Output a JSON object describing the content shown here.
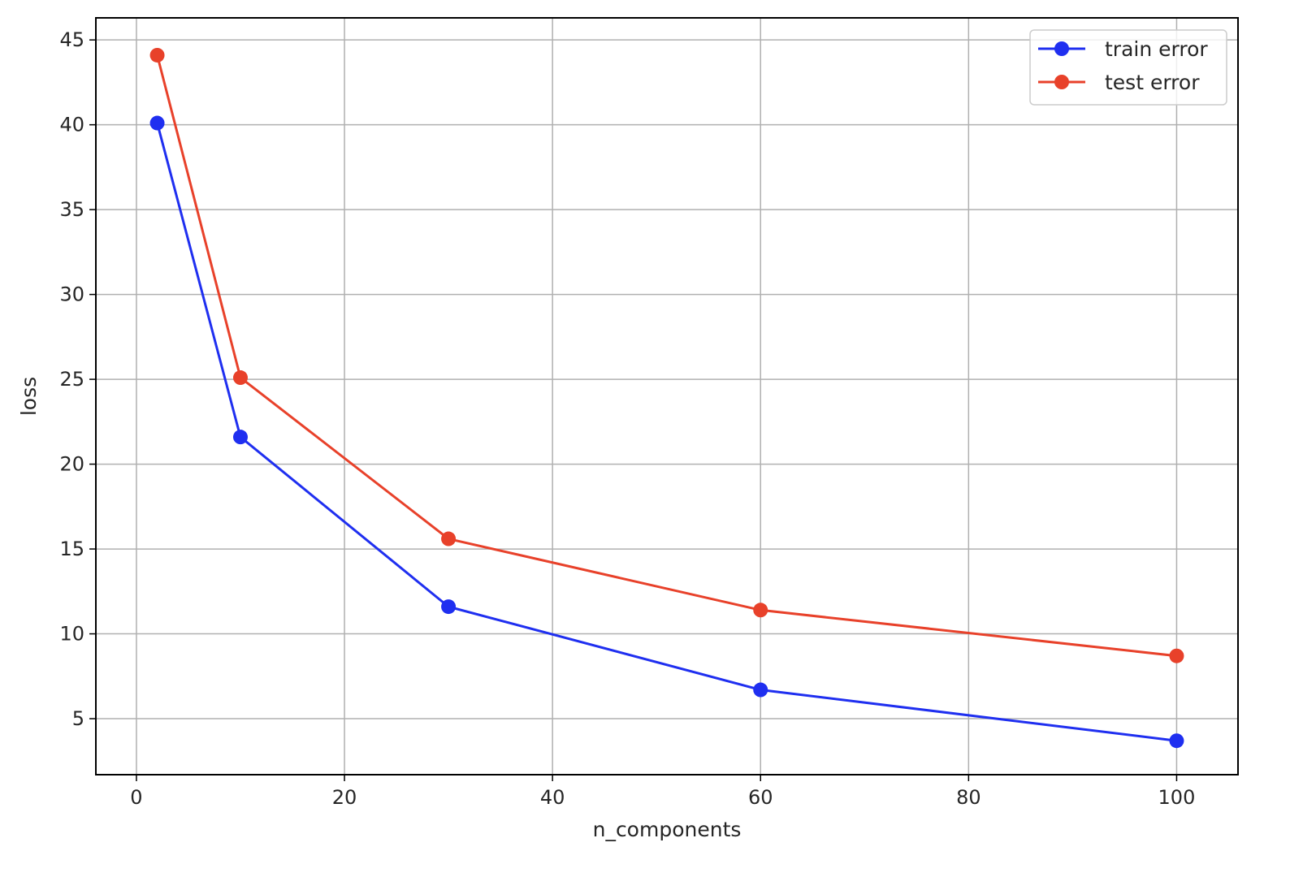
{
  "chart_data": {
    "type": "line",
    "title": "",
    "xlabel": "n_components",
    "ylabel": "loss",
    "xlim": [
      -3.9,
      105.9
    ],
    "ylim": [
      1.7,
      46.3
    ],
    "xticks": [
      0,
      20,
      40,
      60,
      80,
      100
    ],
    "yticks": [
      5,
      10,
      15,
      20,
      25,
      30,
      35,
      40,
      45
    ],
    "grid": true,
    "legend_position": "top-right",
    "series": [
      {
        "name": "train error",
        "color": "#1f2ff0",
        "marker": "circle",
        "x": [
          2,
          10,
          30,
          60,
          100
        ],
        "y": [
          40.1,
          21.6,
          11.6,
          6.7,
          3.7
        ]
      },
      {
        "name": "test error",
        "color": "#e8412a",
        "marker": "circle",
        "x": [
          2,
          10,
          30,
          60,
          100
        ],
        "y": [
          44.1,
          25.1,
          15.6,
          11.4,
          8.7
        ]
      }
    ]
  }
}
